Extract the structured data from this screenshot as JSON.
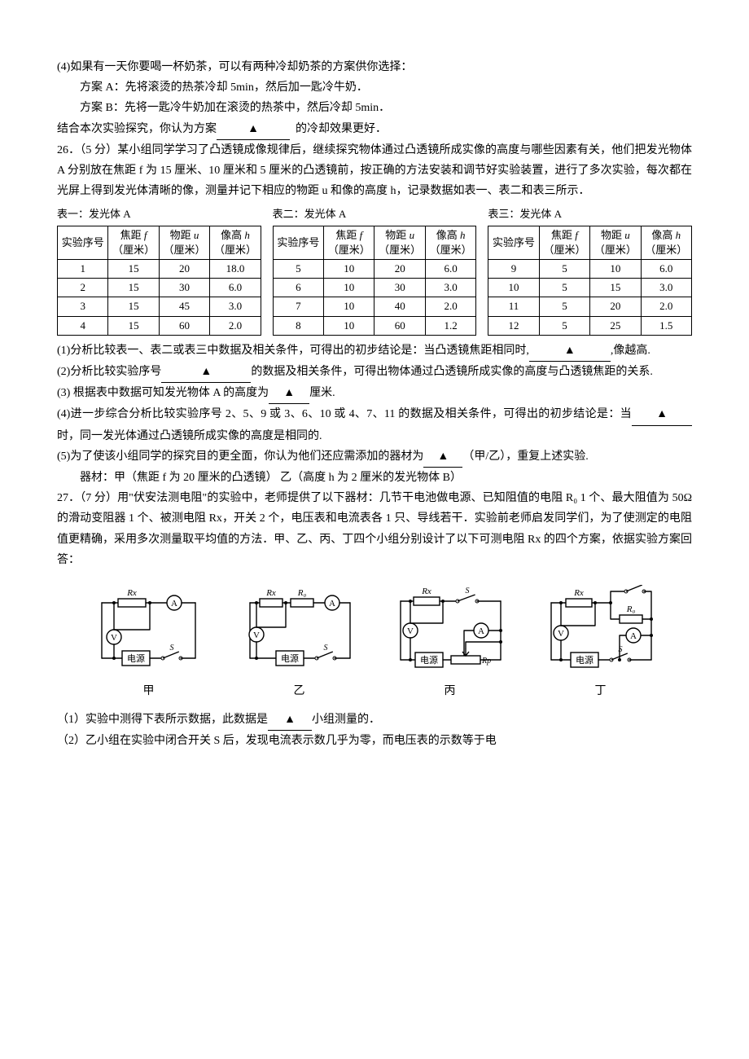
{
  "q25p4": "(4)如果有一天你要喝一杯奶茶，可以有两种冷却奶茶的方案供你选择：",
  "q25pA": "方案 A：先将滚烫的热茶冷却 5min，然后加一匙冷牛奶．",
  "q25pB": "方案 B：先将一匙冷牛奶加在滚烫的热茶中，然后冷却 5min．",
  "q25conc_a": "结合本次实验探究，你认为方案",
  "q25conc_b": "的冷却效果更好．",
  "q26intro": "26．（5 分）某小组同学学习了凸透镜成像规律后，继续探究物体通过凸透镜所成实像的高度与哪些因素有关，他们把发光物体 A 分别放在焦距 f 为 15 厘米、10 厘米和 5 厘米的凸透镜前，按正确的方法安装和调节好实验装置，进行了多次实验，每次都在光屏上得到发光体清晰的像，测量并记下相应的物距 u 和像的高度 h，记录数据如表一、表二和表三所示．",
  "t1title": "表一：发光体 A",
  "t2title": "表二：发光体 A",
  "t3title": "表三：发光体 A",
  "h_seq": "实验序号",
  "h_f": "焦距 f（厘米）",
  "h_u": "物距 u（厘米）",
  "h_h": "像高 h（厘米）",
  "t1": [
    [
      "1",
      "15",
      "20",
      "18.0"
    ],
    [
      "2",
      "15",
      "30",
      "6.0"
    ],
    [
      "3",
      "15",
      "45",
      "3.0"
    ],
    [
      "4",
      "15",
      "60",
      "2.0"
    ]
  ],
  "t2": [
    [
      "5",
      "10",
      "20",
      "6.0"
    ],
    [
      "6",
      "10",
      "30",
      "3.0"
    ],
    [
      "7",
      "10",
      "40",
      "2.0"
    ],
    [
      "8",
      "10",
      "60",
      "1.2"
    ]
  ],
  "t3": [
    [
      "9",
      "5",
      "10",
      "6.0"
    ],
    [
      "10",
      "5",
      "15",
      "3.0"
    ],
    [
      "11",
      "5",
      "20",
      "2.0"
    ],
    [
      "12",
      "5",
      "25",
      "1.5"
    ]
  ],
  "q26_1a": "(1)分析比较表一、表二或表三中数据及相关条件，可得出的初步结论是：当凸透镜焦距相同时,",
  "q26_1b": ",像越高.",
  "q26_2a": "(2)分析比较实验序号",
  "q26_2b": "的数据及相关条件，可得出物体通过凸透镜所成实像的高度与凸透镜焦距的关系.",
  "q26_3a": "(3) 根据表中数据可知发光物体 A 的高度为",
  "q26_3b": "厘米.",
  "q26_4a": "(4)进一步综合分析比较实验序号 2、5、9 或 3、6、10 或 4、7、11 的数据及相关条件，可得出的初步结论是：当",
  "q26_4b": "时，同一发光体通过凸透镜所成实像的高度是相同的.",
  "q26_5a": "(5)为了使该小组同学的探究目的更全面，你认为他们还应需添加的器材为",
  "q26_5b": "（甲/乙），重复上述实验.",
  "q26_mat": "器材：甲（焦距 f 为 20 厘米的凸透镜）   乙（高度 h 为 2 厘米的发光物体 B）",
  "q27intro": "27．（7 分）用\"伏安法测电阻\"的实验中，老师提供了以下器材：几节干电池做电源、已知阻值的电阻 R₀ 1 个、最大阻值为 50Ω 的滑动变阻器 1 个、被测电阻 Rx，开关 2 个，电压表和电流表各 1 只、导线若干．实验前老师启发同学们，为了使测定的电阻值更精确，采用多次测量取平均值的方法．甲、乙、丙、丁四个小组分别设计了以下可测电阻 Rx 的四个方案，依据实验方案回答：",
  "labels": {
    "jia": "甲",
    "yi": "乙",
    "bing": "丙",
    "ding": "丁",
    "ps": "电源",
    "Rx": "Rx",
    "R0": "R₀",
    "Rp": "Rp",
    "S": "S",
    "S1": "S₁",
    "V": "V",
    "A": "A"
  },
  "q27_1a": "（1）实验中测得下表所示数据，此数据是",
  "q27_1b": "小组测量的．",
  "q27_2": "（2）乙小组在实验中闭合开关 S 后，发现电流表示数几乎为零，而电压表的示数等于电",
  "style": {
    "blank_width_std": 84,
    "blank_width_sm": 56,
    "circuit_w": 140,
    "circuit_h": 108,
    "stroke": "#000",
    "stroke_w": 1.4
  }
}
